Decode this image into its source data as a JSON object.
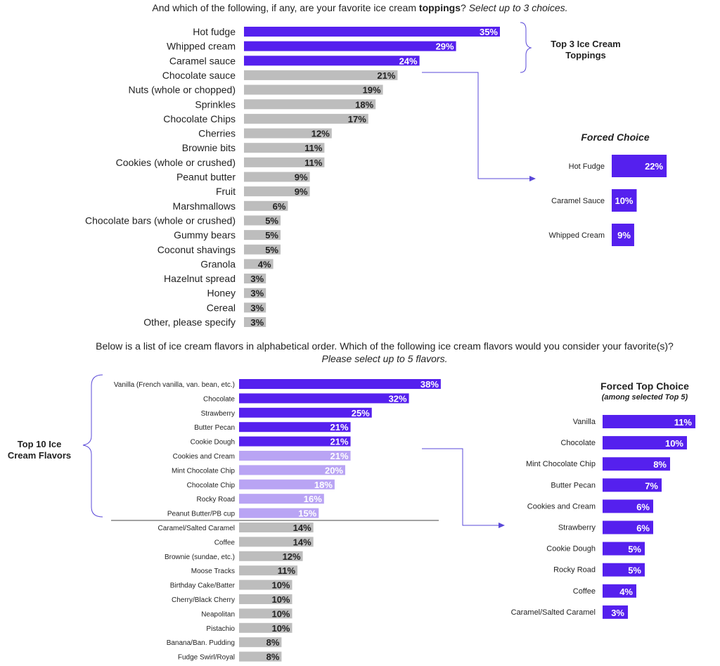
{
  "colors": {
    "purple": "#5520ee",
    "light_purple": "#b9a4f4",
    "gray": "#bdbdbd",
    "connector": "#5a48d8"
  },
  "question1": {
    "text_before": "And which of the following, if any, are your favorite ice cream ",
    "text_bold": "toppings",
    "text_q": "? ",
    "text_italic": "Select up to 3 choices."
  },
  "question2": {
    "line1": "Below is a list of ice cream flavors in alphabetical order. Which of the following ice cream flavors would you consider your favorite(s)?",
    "line2": "Please select up to 5 flavors."
  },
  "labels": {
    "top3": "Top 3 Ice Cream Toppings",
    "forced_choice": "Forced Choice",
    "top10": "Top 10 Ice Cream Flavors",
    "forced_top_choice": "Forced Top Choice",
    "forced_top_sub": "(among selected Top 5)"
  },
  "chart_data": [
    {
      "type": "bar",
      "title": "Favorite ice cream toppings",
      "orientation": "horizontal",
      "unit": "%",
      "categories": [
        "Hot fudge",
        "Whipped cream",
        "Caramel sauce",
        "Chocolate sauce",
        "Nuts (whole or chopped)",
        "Sprinkles",
        "Chocolate Chips",
        "Cherries",
        "Brownie bits",
        "Cookies (whole or crushed)",
        "Peanut butter",
        "Fruit",
        "Marshmallows",
        "Chocolate bars (whole or crushed)",
        "Gummy bears",
        "Coconut shavings",
        "Granola",
        "Hazelnut spread",
        "Honey",
        "Cereal",
        "Other, please specify"
      ],
      "values": [
        35,
        29,
        24,
        21,
        19,
        18,
        17,
        12,
        11,
        11,
        9,
        9,
        6,
        5,
        5,
        5,
        4,
        3,
        3,
        3,
        3
      ],
      "highlight_top_n": 3
    },
    {
      "type": "bar",
      "title": "Forced Choice",
      "orientation": "horizontal",
      "unit": "%",
      "categories": [
        "Hot Fudge",
        "Caramel Sauce",
        "Whipped Cream"
      ],
      "values": [
        22,
        10,
        9
      ]
    },
    {
      "type": "bar",
      "title": "Favorite ice cream flavors",
      "orientation": "horizontal",
      "unit": "%",
      "categories": [
        "Vanilla (French vanilla, van. bean, etc.)",
        "Chocolate",
        "Strawberry",
        "Butter Pecan",
        "Cookie Dough",
        "Cookies and Cream",
        "Mint Chocolate Chip",
        "Chocolate Chip",
        "Rocky Road",
        "Peanut Butter/PB cup",
        "Caramel/Salted Caramel",
        "Coffee",
        "Brownie (sundae, etc.)",
        "Moose Tracks",
        "Birthday Cake/Batter",
        "Cherry/Black Cherry",
        "Neapolitan",
        "Pistachio",
        "Banana/Ban. Pudding",
        "Fudge Swirl/Royal"
      ],
      "values": [
        38,
        32,
        25,
        21,
        21,
        21,
        20,
        18,
        16,
        15,
        14,
        14,
        12,
        11,
        10,
        10,
        10,
        10,
        8,
        8
      ],
      "highlight_top_n": 5,
      "secondary_highlight_top_n": 10
    },
    {
      "type": "bar",
      "title": "Forced Top Choice (among selected Top 5)",
      "orientation": "horizontal",
      "unit": "%",
      "categories": [
        "Vanilla",
        "Chocolate",
        "Mint Chocolate Chip",
        "Butter Pecan",
        "Cookies and Cream",
        "Strawberry",
        "Cookie Dough",
        "Rocky Road",
        "Coffee",
        "Caramel/Salted Caramel"
      ],
      "values": [
        11,
        10,
        8,
        7,
        6,
        6,
        5,
        5,
        4,
        3
      ]
    }
  ]
}
